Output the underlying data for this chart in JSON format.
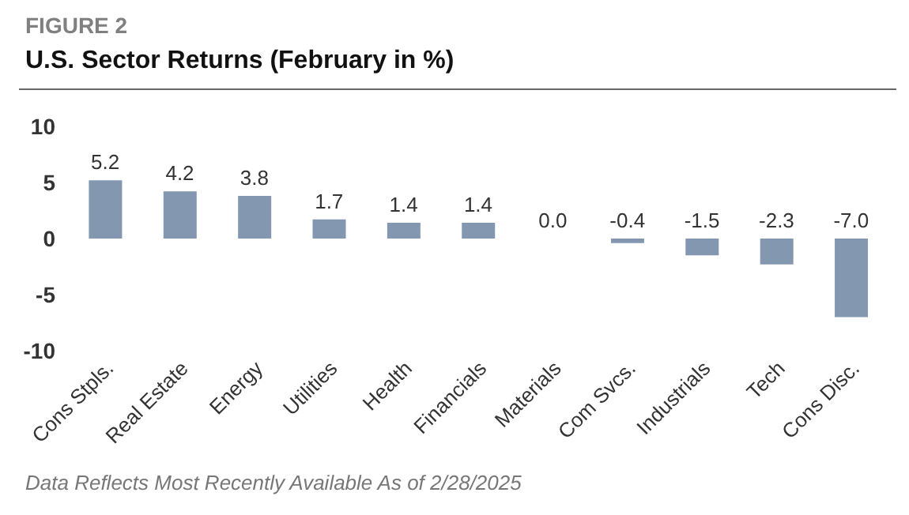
{
  "chart_data": {
    "type": "bar",
    "title": "U.S. Sector Returns (February in %)",
    "subtitle": "FIGURE 2",
    "categories": [
      "Cons Stpls.",
      "Real Estate",
      "Energy",
      "Utilities",
      "Health",
      "Financials",
      "Materials",
      "Com Svcs.",
      "Industrials",
      "Tech",
      "Cons Disc."
    ],
    "values": [
      5.2,
      4.2,
      3.8,
      1.7,
      1.4,
      1.4,
      0.0,
      -0.4,
      -1.5,
      -2.3,
      -7.0
    ],
    "color": "#8497b0",
    "value_labels": [
      "5.2",
      "4.2",
      "3.8",
      "1.7",
      "1.4",
      "1.4",
      "0.0",
      "-0.4",
      "-1.5",
      "-2.3",
      "-7.0"
    ],
    "ylim": [
      -10,
      10
    ],
    "yticks": [
      -10,
      -5,
      0,
      5,
      10
    ],
    "grid": false,
    "legend": false,
    "annotations": [
      "Data Reflects Most Recently Available As of 2/28/2025"
    ]
  }
}
